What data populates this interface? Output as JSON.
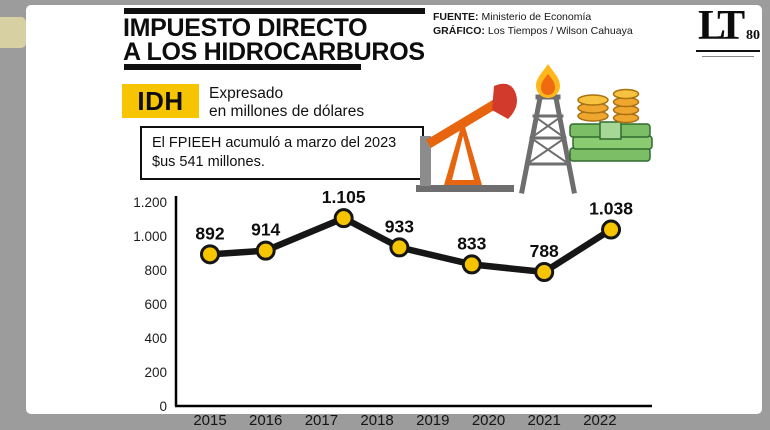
{
  "header": {
    "title_line1": "IMPUESTO DIRECTO",
    "title_line2": "A LOS HIDROCARBUROS",
    "source": {
      "label": "FUENTE:",
      "value": "Ministerio de Economía"
    },
    "credit": {
      "label": "GRÁFICO:",
      "value": "Los Tiempos / Wilson Cahuaya"
    },
    "logo": {
      "text": "LT",
      "anniversary": "80"
    }
  },
  "legend": {
    "badge": "IDH",
    "subtitle_line1": "Expresado",
    "subtitle_line2": "en millones de dólares"
  },
  "note": {
    "line1": "El FPIEEH acumuló a marzo del 2023",
    "line2": "$us 541 millones."
  },
  "illustration_icons": [
    "pumpjack-icon",
    "oil-derrick-icon",
    "flame-icon",
    "money-icon",
    "coins-icon"
  ],
  "chart_data": {
    "type": "line",
    "title": "IMPUESTO DIRECTO A LOS HIDROCARBUROS",
    "subtitle": "IDH expresado en millones de dólares",
    "ylim": [
      0,
      1200
    ],
    "grid": false,
    "yticks": [
      {
        "value": 0,
        "label": "0"
      },
      {
        "value": 200,
        "label": "200"
      },
      {
        "value": 400,
        "label": "400"
      },
      {
        "value": 600,
        "label": "600"
      },
      {
        "value": 800,
        "label": "800"
      },
      {
        "value": 1000,
        "label": "1.000"
      },
      {
        "value": 1200,
        "label": "1.200"
      }
    ],
    "x_axis_years": [
      "2015",
      "2016",
      "2017",
      "2018",
      "2019",
      "2020",
      "2021",
      "2022"
    ],
    "points": [
      {
        "x_year": 2015.0,
        "value": 892,
        "label": "892"
      },
      {
        "x_year": 2016.0,
        "value": 914,
        "label": "914"
      },
      {
        "x_year": 2017.4,
        "value": 1105,
        "label": "1.105"
      },
      {
        "x_year": 2018.4,
        "value": 933,
        "label": "933"
      },
      {
        "x_year": 2019.7,
        "value": 833,
        "label": "833"
      },
      {
        "x_year": 2021.0,
        "value": 788,
        "label": "788"
      },
      {
        "x_year": 2022.2,
        "value": 1038,
        "label": "1.038"
      }
    ],
    "line_color": "#161616",
    "marker_fill": "#F6C500",
    "marker_stroke": "#161616"
  },
  "colors": {
    "frame-gray": "#9c9c9c",
    "edge-artifact": "#d6d0a2",
    "ink": "#101010",
    "accent-yellow": "#F6C500",
    "pump-orange": "#E8650F",
    "pump-red": "#D23B2C",
    "derrick-gray": "#6e6e6e",
    "flame-yellow": "#FFB81C",
    "flame-orange": "#F06A10",
    "money-green": "#7CBE66",
    "money-green-dark": "#2F6B2F",
    "coin-gold": "#EFA62F",
    "coin-gold-dark": "#A8700E"
  }
}
